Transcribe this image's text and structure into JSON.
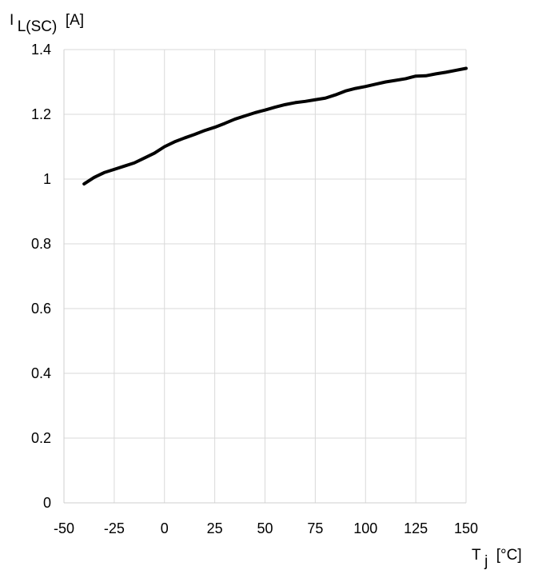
{
  "chart_data": {
    "type": "line",
    "y_label": {
      "symbol": "I",
      "subscript": "L(SC)",
      "unit": "[A]"
    },
    "x_label": {
      "symbol": "T",
      "subscript": "j",
      "unit": "[°C]"
    },
    "x_ticks": [
      "-50",
      "-25",
      "0",
      "25",
      "50",
      "75",
      "100",
      "125",
      "150"
    ],
    "y_ticks": [
      "0",
      "0.2",
      "0.4",
      "0.6",
      "0.8",
      "1",
      "1.2",
      "1.4"
    ],
    "xlim": [
      -50,
      150
    ],
    "ylim": [
      0,
      1.4
    ],
    "x_grid_values": [
      -50,
      -25,
      0,
      25,
      50,
      75,
      100,
      125,
      150
    ],
    "y_grid_values": [
      0,
      0.2,
      0.4,
      0.6,
      0.8,
      1.0,
      1.2,
      1.4
    ],
    "grid": true,
    "series": [
      {
        "color": "#000000",
        "points": [
          [
            -40,
            0.985
          ],
          [
            -35,
            1.005
          ],
          [
            -30,
            1.02
          ],
          [
            -25,
            1.03
          ],
          [
            -20,
            1.04
          ],
          [
            -15,
            1.05
          ],
          [
            -10,
            1.065
          ],
          [
            -5,
            1.08
          ],
          [
            0,
            1.1
          ],
          [
            5,
            1.115
          ],
          [
            10,
            1.127
          ],
          [
            15,
            1.138
          ],
          [
            20,
            1.15
          ],
          [
            25,
            1.16
          ],
          [
            30,
            1.172
          ],
          [
            35,
            1.185
          ],
          [
            40,
            1.195
          ],
          [
            45,
            1.205
          ],
          [
            50,
            1.213
          ],
          [
            55,
            1.222
          ],
          [
            60,
            1.23
          ],
          [
            65,
            1.236
          ],
          [
            70,
            1.24
          ],
          [
            75,
            1.245
          ],
          [
            80,
            1.25
          ],
          [
            85,
            1.26
          ],
          [
            90,
            1.272
          ],
          [
            95,
            1.28
          ],
          [
            100,
            1.286
          ],
          [
            105,
            1.293
          ],
          [
            110,
            1.3
          ],
          [
            115,
            1.305
          ],
          [
            120,
            1.31
          ],
          [
            123,
            1.315
          ],
          [
            125,
            1.318
          ],
          [
            130,
            1.319
          ],
          [
            135,
            1.325
          ],
          [
            140,
            1.33
          ],
          [
            145,
            1.336
          ],
          [
            150,
            1.342
          ]
        ]
      }
    ]
  }
}
